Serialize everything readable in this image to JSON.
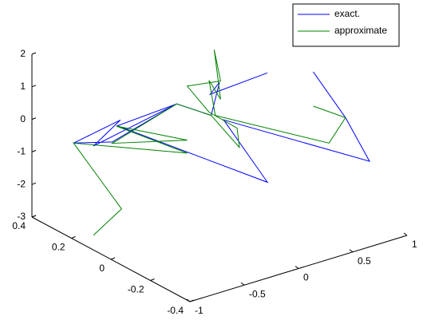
{
  "chart_data": {
    "type": "line3d",
    "series": [
      {
        "name": "exact.",
        "color": "#0000ff",
        "x": [
          0.5,
          0.67,
          0.8,
          0.02,
          0.26,
          -0.54,
          -0.23,
          -0.67,
          -0.53,
          -0.78,
          -0.57,
          -0.23,
          -0.04,
          0.0,
          -0.05,
          0.26
        ],
        "y": [
          -0.2,
          -0.27,
          -0.32,
          -0.01,
          -0.1,
          0.22,
          0.09,
          0.27,
          0.21,
          0.31,
          0.23,
          0.09,
          0.02,
          0.0,
          0.02,
          -0.1
        ],
        "z": [
          1.88,
          0.53,
          -0.78,
          0.28,
          -1.59,
          -0.08,
          0.7,
          -0.73,
          0.12,
          -0.66,
          -0.58,
          0.7,
          0.38,
          1.42,
          1.04,
          1.77
        ]
      },
      {
        "name": "approximate",
        "color": "#008000",
        "x": [
          -0.67,
          -0.52,
          -0.78,
          -0.17,
          -0.55,
          -0.17,
          -0.57,
          -0.23,
          -0.04,
          0.11,
          0.09,
          -0.06,
          -0.17,
          0.01,
          -0.03,
          0.01,
          -0.06,
          -0.02,
          0.59,
          0.67,
          0.5
        ],
        "y": [
          0.27,
          0.21,
          0.31,
          0.07,
          0.22,
          0.07,
          0.23,
          0.09,
          0.02,
          -0.04,
          -0.04,
          0.02,
          0.07,
          0.0,
          0.01,
          0.0,
          0.02,
          0.01,
          -0.23,
          -0.27,
          -0.2
        ],
        "z": [
          -3.47,
          -2.62,
          -0.66,
          -0.81,
          -0.08,
          -0.41,
          -0.62,
          0.7,
          0.38,
          -0.56,
          0.05,
          0.5,
          1.25,
          1.45,
          2.42,
          0.89,
          1.48,
          0.39,
          -0.3,
          0.53,
          0.83
        ]
      }
    ],
    "xlim": [
      -1,
      1
    ],
    "xticks": [
      -1,
      -0.5,
      0,
      0.5,
      1
    ],
    "ylim": [
      -0.4,
      0.4
    ],
    "yticks": [
      0.4,
      0.2,
      0,
      -0.2,
      -0.4
    ],
    "zlim": [
      -3,
      2
    ],
    "zticks": [
      2,
      1,
      0,
      -1,
      -2,
      -3
    ],
    "legend": "northeast"
  }
}
